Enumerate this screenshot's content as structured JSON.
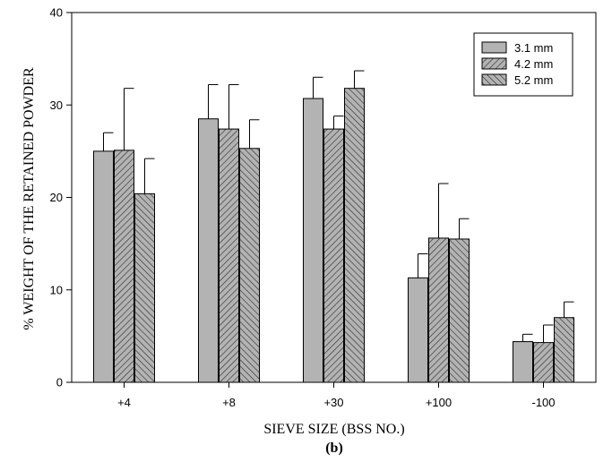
{
  "caption": "(b)",
  "chart_data": {
    "type": "bar",
    "categories": [
      "+4",
      "+8",
      "+30",
      "+100",
      "-100"
    ],
    "series": [
      {
        "name": "3.1 mm",
        "values": [
          25.0,
          28.5,
          30.7,
          11.3,
          4.4
        ],
        "errors": [
          2.0,
          3.7,
          2.3,
          2.6,
          0.8
        ],
        "pattern": "solid"
      },
      {
        "name": "4.2 mm",
        "values": [
          25.1,
          27.4,
          27.4,
          15.6,
          4.3
        ],
        "errors": [
          6.7,
          4.8,
          1.4,
          5.9,
          1.9
        ],
        "pattern": "hatch-right"
      },
      {
        "name": "5.2 mm",
        "values": [
          20.4,
          25.3,
          31.8,
          15.5,
          7.0
        ],
        "errors": [
          3.8,
          3.1,
          1.9,
          2.2,
          1.7
        ],
        "pattern": "hatch-left"
      }
    ],
    "title": "",
    "xlabel": "SIEVE SIZE (BSS NO.)",
    "ylabel": "% WEIGHT OF THE RETAINED POWDER",
    "ylim": [
      0,
      40
    ],
    "yticks": [
      0,
      10,
      20,
      30,
      40
    ],
    "legend_position": "top-right",
    "grid": false,
    "colors": {
      "bar_fill": "#b3b3b3",
      "hatch": "#333333",
      "stroke": "#000000"
    }
  }
}
